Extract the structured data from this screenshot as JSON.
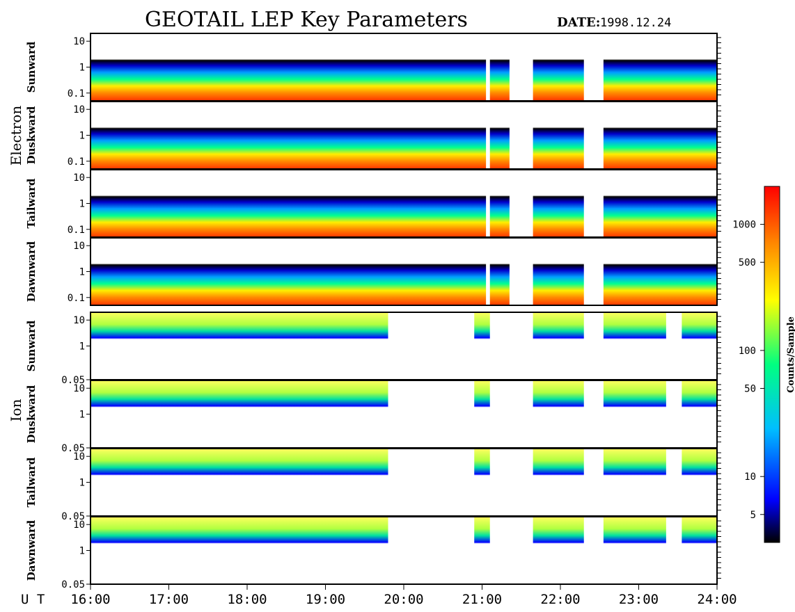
{
  "chart_data": {
    "type": "heatmap",
    "title": "GEOTAIL LEP Key Parameters",
    "date_label": "DATE:",
    "date_value": "1998.12.24",
    "x_axis_prefix": "U T",
    "x_ticks": [
      "16:00",
      "17:00",
      "18:00",
      "19:00",
      "20:00",
      "21:00",
      "22:00",
      "23:00",
      "24:00"
    ],
    "xlim_hours": [
      16,
      24
    ],
    "groups": [
      {
        "name": "Electron",
        "ylim": [
          0.05,
          20
        ],
        "y_ticks": [
          "10",
          "1",
          "0.1"
        ],
        "y_tick_values": [
          10,
          1,
          0.1
        ],
        "panels": [
          {
            "label": "Sunward"
          },
          {
            "label": "Duskward"
          },
          {
            "label": "Tailward"
          },
          {
            "label": "Dawnward"
          }
        ],
        "data_gaps_hours": [
          [
            21.05,
            21.1
          ],
          [
            21.35,
            21.65
          ],
          [
            22.3,
            22.55
          ]
        ]
      },
      {
        "name": "Ion",
        "ylim": [
          0.05,
          20
        ],
        "y_ticks": [
          "10",
          "1",
          "0.05"
        ],
        "y_tick_values": [
          10,
          1,
          0.05
        ],
        "panels": [
          {
            "label": "Sunward"
          },
          {
            "label": "Duskward"
          },
          {
            "label": "Tailward"
          },
          {
            "label": "Dawnward"
          }
        ],
        "data_gaps_hours": [
          [
            19.8,
            20.9
          ],
          [
            21.1,
            21.65
          ],
          [
            22.3,
            22.55
          ],
          [
            23.35,
            23.55
          ]
        ]
      }
    ],
    "colorbar": {
      "label": "Counts/Sample",
      "scale": "log",
      "range": [
        3,
        2000
      ],
      "ticks": [
        "1000",
        "500",
        "100",
        "50",
        "10",
        "5"
      ],
      "tick_values": [
        1000,
        500,
        100,
        50,
        10,
        5
      ],
      "colors": [
        "#000000",
        "#0000ff",
        "#00bfff",
        "#00ff80",
        "#ffff00",
        "#ff8000",
        "#ff0000"
      ]
    }
  }
}
